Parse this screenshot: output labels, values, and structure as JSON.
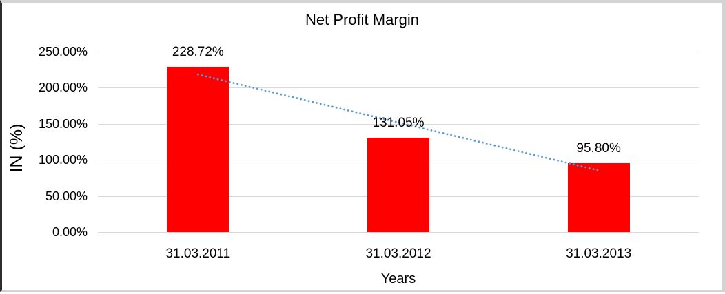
{
  "chart_data": {
    "type": "bar",
    "title": "Net Profit Margin",
    "xlabel": "Years",
    "ylabel": "IN (%)",
    "categories": [
      "31.03.2011",
      "31.03.2012",
      "31.03.2013"
    ],
    "series": [
      {
        "name": "Net Profit Margin",
        "values": [
          228.72,
          131.05,
          95.8
        ]
      }
    ],
    "data_labels": [
      "228.72%",
      "131.05%",
      "95.80%"
    ],
    "y_tick_labels": [
      "250.00%",
      "200.00%",
      "150.00%",
      "100.00%",
      "50.00%",
      "0.00%"
    ],
    "y_tick_values": [
      250,
      200,
      150,
      100,
      50,
      0
    ],
    "ylim": [
      0,
      250
    ],
    "grid": true,
    "legend": "none",
    "trendline": {
      "type": "linear",
      "style": "dotted",
      "start_value": 218.3,
      "end_value": 85.4
    },
    "colors": {
      "bar": "#ff0000",
      "trendline": "#5b9bd5",
      "gridline": "#d9d9d9",
      "text": "#000000"
    }
  }
}
